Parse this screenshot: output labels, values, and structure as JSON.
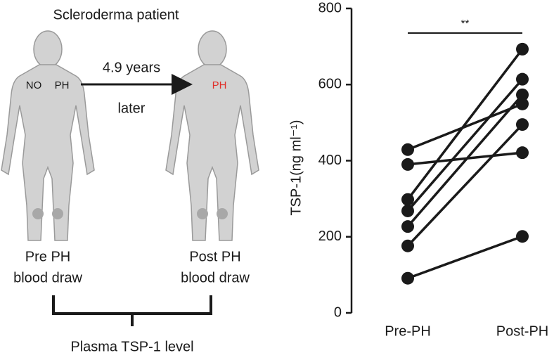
{
  "diagram": {
    "title": "Scleroderma patient",
    "pre_labels": [
      "NO",
      "PH"
    ],
    "interval": "4.9 years",
    "interval_unit": "later",
    "post_label": "PH",
    "pre_caption": [
      "Pre PH",
      "blood draw"
    ],
    "post_caption": [
      "Post PH",
      "blood draw"
    ],
    "bracket_label": "Plasma TSP-1 level"
  },
  "chart_data": {
    "type": "line",
    "y_label": "TSP-1(ng ml⁻¹)",
    "annotation": "**",
    "categories": [
      "Pre-PH",
      "Post-PH"
    ],
    "series": [
      {
        "color": "#1a1a1a",
        "values": [
          429,
          549
        ]
      },
      {
        "color": "#1a1a1a",
        "values": [
          390,
          421
        ]
      },
      {
        "color": "#1a1a1a",
        "values": [
          298,
          693
        ]
      },
      {
        "color": "#1a1a1a",
        "values": [
          268,
          614
        ]
      },
      {
        "color": "#1a1a1a",
        "values": [
          227,
          573
        ]
      },
      {
        "color": "#1a1a1a",
        "values": [
          176,
          495
        ]
      },
      {
        "color": "#1a1a1a",
        "values": [
          91,
          201
        ]
      }
    ],
    "ylim": [
      0,
      800
    ],
    "yticks": [
      0,
      200,
      400,
      600,
      800
    ]
  }
}
